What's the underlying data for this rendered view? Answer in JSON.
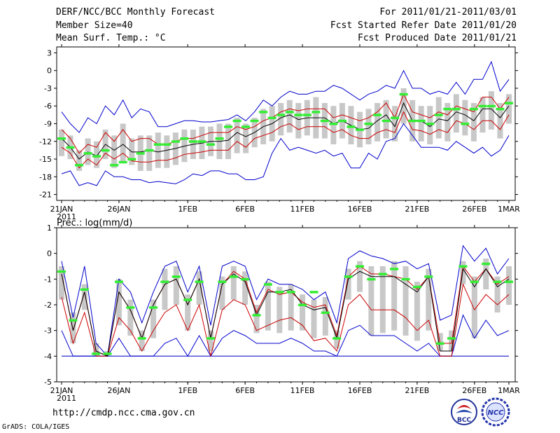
{
  "header": {
    "title": "DERF/NCC/BCC Monthly Forecast",
    "member_size": "Member Size=40",
    "variable": "Mean Surf. Temp.: °C",
    "period": "For 2011/01/21-2011/03/01",
    "started_date": "Fcst Started Refer Date 2011/01/20",
    "produced_date": "Fcst Produced Date 2011/01/21"
  },
  "footer": {
    "url": "http://cmdp.ncc.cma.gov.cn",
    "credit": "GrADS: COLA/IGES",
    "logo_left_text": "BCC",
    "logo_right_text": "NCC"
  },
  "colors": {
    "envelope": "#0000cc",
    "quartile": "#cc0000",
    "mean": "#000000",
    "box": "#c8c8c8",
    "median": "#33ee33"
  },
  "chart_data": [
    {
      "type": "line",
      "panel_label": "Mean Surf. Temp.: °C",
      "ylim": [
        -22,
        4
      ],
      "yticks": [
        3,
        0,
        -3,
        -6,
        -9,
        -12,
        -15,
        -18,
        -21
      ],
      "xticks": [
        "21JAN",
        "26JAN",
        "1FEB",
        "6FEB",
        "11FEB",
        "16FEB",
        "21FEB",
        "26FEB",
        "1MAR"
      ],
      "xtick_days": [
        0,
        5,
        11,
        16,
        21,
        26,
        31,
        36,
        39
      ],
      "year_label": "2011",
      "series": [
        {
          "name": "max",
          "values": [
            -7,
            -9,
            -10.5,
            -8,
            -9,
            -6,
            -7.5,
            -5,
            -8,
            -6.5,
            -7,
            -9.5,
            -9.5,
            -9,
            -8.5,
            -8.5,
            -8.7,
            -8.7,
            -8.5,
            -8.3,
            -7.5,
            -8.5,
            -7,
            -5,
            -6,
            -4.5,
            -3.5,
            -4,
            -4,
            -3.5,
            -3.5,
            -2.5,
            -3,
            -4,
            -5,
            -4,
            -3.5,
            -2.5,
            -3,
            0,
            -3,
            -3,
            -4,
            -3.5,
            -4,
            -2,
            -4,
            -1.5,
            -1.5,
            1.5,
            -3.5,
            -1.5
          ]
        },
        {
          "name": "q3",
          "values": [
            -10,
            -11.5,
            -14,
            -12.5,
            -13,
            -10.5,
            -12,
            -10,
            -12,
            -11.5,
            -11.5,
            -12.5,
            -12.5,
            -12,
            -11.5,
            -11.5,
            -11,
            -10.5,
            -10.5,
            -10.5,
            -9.5,
            -10,
            -9.5,
            -8.5,
            -8,
            -7,
            -6.5,
            -6.8,
            -6.5,
            -6.5,
            -6.5,
            -8,
            -7.5,
            -8,
            -8.5,
            -8,
            -7,
            -5.5,
            -8,
            -4,
            -7,
            -7.5,
            -8,
            -7,
            -7.5,
            -6,
            -6.5,
            -7,
            -4.5,
            -4.5,
            -6.5,
            -4.5
          ]
        },
        {
          "name": "mean",
          "values": [
            -11.5,
            -13,
            -15,
            -13.8,
            -14.5,
            -12.5,
            -13.5,
            -12.5,
            -13.8,
            -13.8,
            -13.5,
            -13.8,
            -13.5,
            -13.2,
            -12.8,
            -12.5,
            -12.3,
            -12,
            -12,
            -11.8,
            -10.5,
            -11.2,
            -10.5,
            -9.5,
            -9,
            -8,
            -7.5,
            -8.3,
            -8,
            -8,
            -8,
            -9,
            -8.5,
            -9.3,
            -10,
            -9.8,
            -8.5,
            -7.5,
            -9.5,
            -5.5,
            -8.5,
            -8.5,
            -9.5,
            -8.2,
            -8.5,
            -7,
            -7.5,
            -8.5,
            -6.5,
            -6.5,
            -8,
            -6
          ]
        },
        {
          "name": "q1",
          "values": [
            -13,
            -14,
            -16.5,
            -15,
            -16,
            -14,
            -15,
            -14,
            -15.3,
            -15.5,
            -15.5,
            -15.2,
            -15.2,
            -14.8,
            -14.2,
            -14,
            -13.8,
            -13.5,
            -13.5,
            -13.5,
            -12,
            -13,
            -11.5,
            -11,
            -10.5,
            -9.5,
            -9,
            -10,
            -9.5,
            -9.5,
            -9.5,
            -10.5,
            -10,
            -11,
            -11.5,
            -11.5,
            -10.5,
            -10,
            -10.5,
            -7,
            -10,
            -10.2,
            -10.8,
            -10,
            -10.5,
            -8.5,
            -9,
            -10,
            -8.5,
            -8.5,
            -10,
            -7.5
          ]
        },
        {
          "name": "min",
          "values": [
            -17.5,
            -17,
            -19.5,
            -19,
            -19.5,
            -17,
            -18,
            -18,
            -18.5,
            -18.5,
            -19,
            -18.8,
            -19,
            -19.2,
            -18.5,
            -17.5,
            -17.8,
            -17,
            -17,
            -17.5,
            -17.5,
            -18.5,
            -18.5,
            -18,
            -14,
            -11.5,
            -13.5,
            -13,
            -13.5,
            -14,
            -13.5,
            -14.5,
            -14,
            -16.5,
            -16.5,
            -14,
            -15,
            -12,
            -11.5,
            -9,
            -11,
            -13,
            -13,
            -13,
            -13.5,
            -12,
            -13,
            -14,
            -13,
            -14.5,
            -13.5,
            -11
          ]
        },
        {
          "name": "median",
          "values": [
            -11.5,
            -13,
            -16,
            -14,
            -14.5,
            -13.5,
            -16,
            -15.5,
            -15,
            -14,
            -13.5,
            -12.5,
            -12.5,
            -12,
            -11.5,
            -12,
            -12,
            -12.5,
            -11.5,
            -9.5,
            -8.5,
            -9.5,
            -8.5,
            -7,
            -8,
            -7.5,
            -7,
            -7.5,
            -7.5,
            -7,
            -8.5,
            -9,
            -8.5,
            -9.5,
            -10,
            -9,
            -7.5,
            -8.5,
            -8,
            -4,
            -8.5,
            -8.5,
            -9,
            -7.5,
            -6.5,
            -6.5,
            -9,
            -6.5,
            -6,
            -6,
            -6.5,
            -5.5
          ]
        },
        {
          "name": "box_top",
          "values": [
            -10,
            -11,
            -13.5,
            -11.5,
            -12,
            -10,
            -11,
            -9,
            -11.5,
            -11,
            -11,
            -10.5,
            -11,
            -10.5,
            -10,
            -10,
            -9.5,
            -9.5,
            -9,
            -9,
            -8,
            -9,
            -8,
            -6.5,
            -6,
            -5.5,
            -5,
            -5.5,
            -5,
            -4.5,
            -5.5,
            -6,
            -5.5,
            -6,
            -7,
            -6.5,
            -5.5,
            -5,
            -6,
            -3,
            -5,
            -6,
            -6,
            -4.5,
            -5.5,
            -4,
            -5,
            -5.5,
            -4.5,
            -3.5,
            -5.5,
            -4
          ]
        },
        {
          "name": "box_bottom",
          "values": [
            -14.5,
            -15,
            -17,
            -16,
            -16.5,
            -15,
            -16.5,
            -15.5,
            -16,
            -17,
            -17,
            -16.5,
            -16.5,
            -16,
            -15.5,
            -15,
            -15,
            -14.5,
            -15,
            -15,
            -14,
            -14,
            -13,
            -12.5,
            -12,
            -11,
            -10.5,
            -11.5,
            -11,
            -11.5,
            -11.5,
            -12.5,
            -11.5,
            -12.5,
            -13,
            -12.5,
            -12,
            -11.5,
            -12,
            -9,
            -12,
            -12,
            -12.5,
            -11.5,
            -12,
            -10.5,
            -11,
            -12,
            -10.5,
            -10,
            -11.5,
            -9
          ]
        }
      ]
    },
    {
      "type": "line",
      "panel_label": "Prec.: log(mm/d)",
      "ylim": [
        -5,
        1
      ],
      "yticks": [
        1,
        0,
        -1,
        -2,
        -3,
        -4,
        -5
      ],
      "xticks": [
        "21JAN",
        "26JAN",
        "1FEB",
        "6FEB",
        "11FEB",
        "16FEB",
        "21FEB",
        "26FEB",
        "1MAR"
      ],
      "xtick_days": [
        0,
        5,
        11,
        16,
        21,
        26,
        31,
        36,
        39
      ],
      "year_label": "2011",
      "series": [
        {
          "name": "max",
          "values": [
            -0.3,
            -2.5,
            -0.5,
            -3.5,
            -4,
            -1,
            -1.5,
            -2.7,
            -1.5,
            -0.5,
            -0.3,
            -1.5,
            -0.5,
            -2.8,
            -0.5,
            -0.3,
            -0.5,
            -1.8,
            -1,
            -1.2,
            -1.2,
            -1.4,
            -1.8,
            -1.5,
            -2.7,
            -0.2,
            0.1,
            -0.1,
            -0.2,
            -0.4,
            -0.3,
            -0.6,
            -0.4,
            -2.6,
            -2.4,
            0.3,
            -0.3,
            0.2,
            -0.8,
            -0.2
          ]
        },
        {
          "name": "q3",
          "values": [
            -0.8,
            -3,
            -1.5,
            -3.8,
            -4,
            -1.5,
            -2.2,
            -3.3,
            -2,
            -1.2,
            -1,
            -2,
            -1,
            -3.3,
            -1.2,
            -0.7,
            -1,
            -2.3,
            -1.4,
            -1.6,
            -1.5,
            -1.9,
            -2.1,
            -2,
            -3.2,
            -0.9,
            -0.5,
            -0.8,
            -0.8,
            -0.9,
            -1,
            -1.4,
            -0.9,
            -3.5,
            -3.5,
            -0.5,
            -1.1,
            -0.6,
            -1.2,
            -0.9
          ]
        },
        {
          "name": "mean",
          "values": [
            -0.8,
            -3,
            -1.5,
            -3.8,
            -4,
            -1.5,
            -2.2,
            -3.3,
            -2,
            -1.2,
            -1,
            -2,
            -1,
            -3.3,
            -1.2,
            -0.8,
            -1.1,
            -2.4,
            -1.5,
            -1.5,
            -1.4,
            -2,
            -2.2,
            -2.1,
            -3.3,
            -1,
            -0.7,
            -0.9,
            -0.9,
            -0.9,
            -1.2,
            -1.5,
            -0.9,
            -3.8,
            -3.8,
            -0.6,
            -1.3,
            -0.6,
            -1.3,
            -1
          ]
        },
        {
          "name": "q1",
          "values": [
            -1.7,
            -3.5,
            -2.3,
            -4,
            -4,
            -2.5,
            -3,
            -3.8,
            -3,
            -2.3,
            -2,
            -3,
            -2,
            -4,
            -2.2,
            -1.8,
            -2,
            -3,
            -2.8,
            -2.6,
            -2.5,
            -2.8,
            -3.4,
            -3.3,
            -3.8,
            -2,
            -1.6,
            -2.2,
            -2.2,
            -2.2,
            -2.5,
            -3,
            -2.6,
            -4,
            -4,
            -1.2,
            -2.2,
            -1.6,
            -2,
            -1.6
          ]
        },
        {
          "name": "min",
          "values": [
            -3,
            -4,
            -4,
            -4,
            -4,
            -3.3,
            -4,
            -4,
            -4,
            -3.5,
            -3.3,
            -4,
            -3.2,
            -4,
            -3.3,
            -3,
            -3.2,
            -3.5,
            -3.5,
            -3.5,
            -3.3,
            -3.5,
            -3.8,
            -3.8,
            -4,
            -3,
            -2.8,
            -3.2,
            -3.2,
            -3.2,
            -3.5,
            -3.8,
            -3.5,
            -4,
            -4,
            -2.4,
            -3.3,
            -2.6,
            -3.2,
            -3
          ]
        },
        {
          "name": "floor",
          "values": [
            -4,
            -4,
            -4,
            -4,
            -4,
            -4,
            -4,
            -4,
            -4,
            -4,
            -4,
            -4,
            -4,
            -4,
            -4,
            -4,
            -4,
            -4,
            -4,
            -4,
            -4,
            -4,
            -4,
            -4,
            -4,
            -4,
            -4,
            -4,
            -4,
            -4,
            -4,
            -4,
            -4,
            -4,
            -4,
            -4,
            -4,
            -4,
            -4,
            -4
          ]
        },
        {
          "name": "median",
          "values": [
            -0.7,
            -2.6,
            -1.4,
            -3.9,
            -3.9,
            -1.1,
            -2.1,
            -3.3,
            -2.1,
            -1.1,
            -0.9,
            -1.8,
            -1.1,
            -3.3,
            -1.1,
            -0.9,
            -1,
            -2.4,
            -1.2,
            -1.5,
            -1.5,
            -2,
            -1.5,
            -2.3,
            -3.3,
            -0.9,
            -0.5,
            -1,
            -0.8,
            -0.6,
            -1,
            -1.3,
            -0.9,
            -3.5,
            -3.3,
            -0.5,
            -1.1,
            -0.4,
            -1.1,
            -1.1
          ]
        },
        {
          "name": "box_top",
          "values": [
            -0.5,
            -2.3,
            -1.2,
            -3.5,
            -3.8,
            -1,
            -1.8,
            -3,
            -1.8,
            -0.6,
            -0.5,
            -1.6,
            -0.7,
            -3,
            -0.9,
            -0.5,
            -0.7,
            -2,
            -1.1,
            -1.3,
            -1.2,
            -1.6,
            -1.8,
            -1.7,
            -3,
            -0.6,
            -0.3,
            -0.5,
            -0.5,
            -0.3,
            -0.5,
            -1.1,
            -0.6,
            -3.1,
            -3,
            -0.3,
            -0.9,
            -0.2,
            -0.9,
            -0.5
          ]
        },
        {
          "name": "box_bottom",
          "values": [
            -1.8,
            -3.5,
            -2.2,
            -4,
            -4,
            -2.8,
            -3.2,
            -3.8,
            -3.3,
            -2.2,
            -2,
            -3,
            -2,
            -3.8,
            -2.2,
            -1.8,
            -2,
            -3.1,
            -3,
            -3.1,
            -3,
            -3,
            -3.3,
            -3.2,
            -3.7,
            -1.8,
            -1.5,
            -3.2,
            -3.1,
            -3,
            -3.2,
            -3.4,
            -3,
            -3.8,
            -3.8,
            -1.2,
            -3.3,
            -1.4,
            -2.3,
            -2
          ]
        }
      ]
    }
  ]
}
